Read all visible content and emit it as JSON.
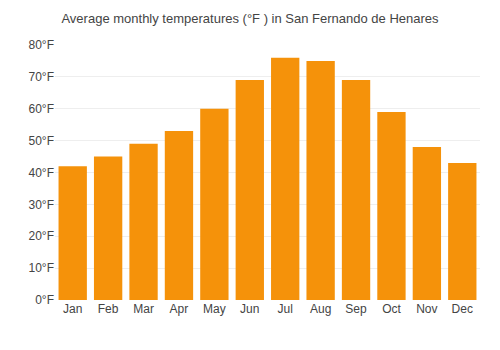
{
  "chart_data": {
    "type": "bar",
    "title": "Average monthly temperatures (°F ) in San Fernando de Henares",
    "categories": [
      "Jan",
      "Feb",
      "Mar",
      "Apr",
      "May",
      "Jun",
      "Jul",
      "Aug",
      "Sep",
      "Oct",
      "Nov",
      "Dec"
    ],
    "values": [
      42,
      45,
      49,
      53,
      60,
      69,
      76,
      75,
      69,
      59,
      48,
      43
    ],
    "color": "#F5920A",
    "ylim": [
      0,
      80
    ],
    "yticks": [
      {
        "value": 0,
        "label": "0°F"
      },
      {
        "value": 10,
        "label": "10°F"
      },
      {
        "value": 20,
        "label": "20°F"
      },
      {
        "value": 30,
        "label": "30°F"
      },
      {
        "value": 40,
        "label": "40°F"
      },
      {
        "value": 50,
        "label": "50°F"
      },
      {
        "value": 60,
        "label": "60°F"
      },
      {
        "value": 70,
        "label": "70°F"
      },
      {
        "value": 80,
        "label": "80°F"
      }
    ],
    "grid": true
  }
}
